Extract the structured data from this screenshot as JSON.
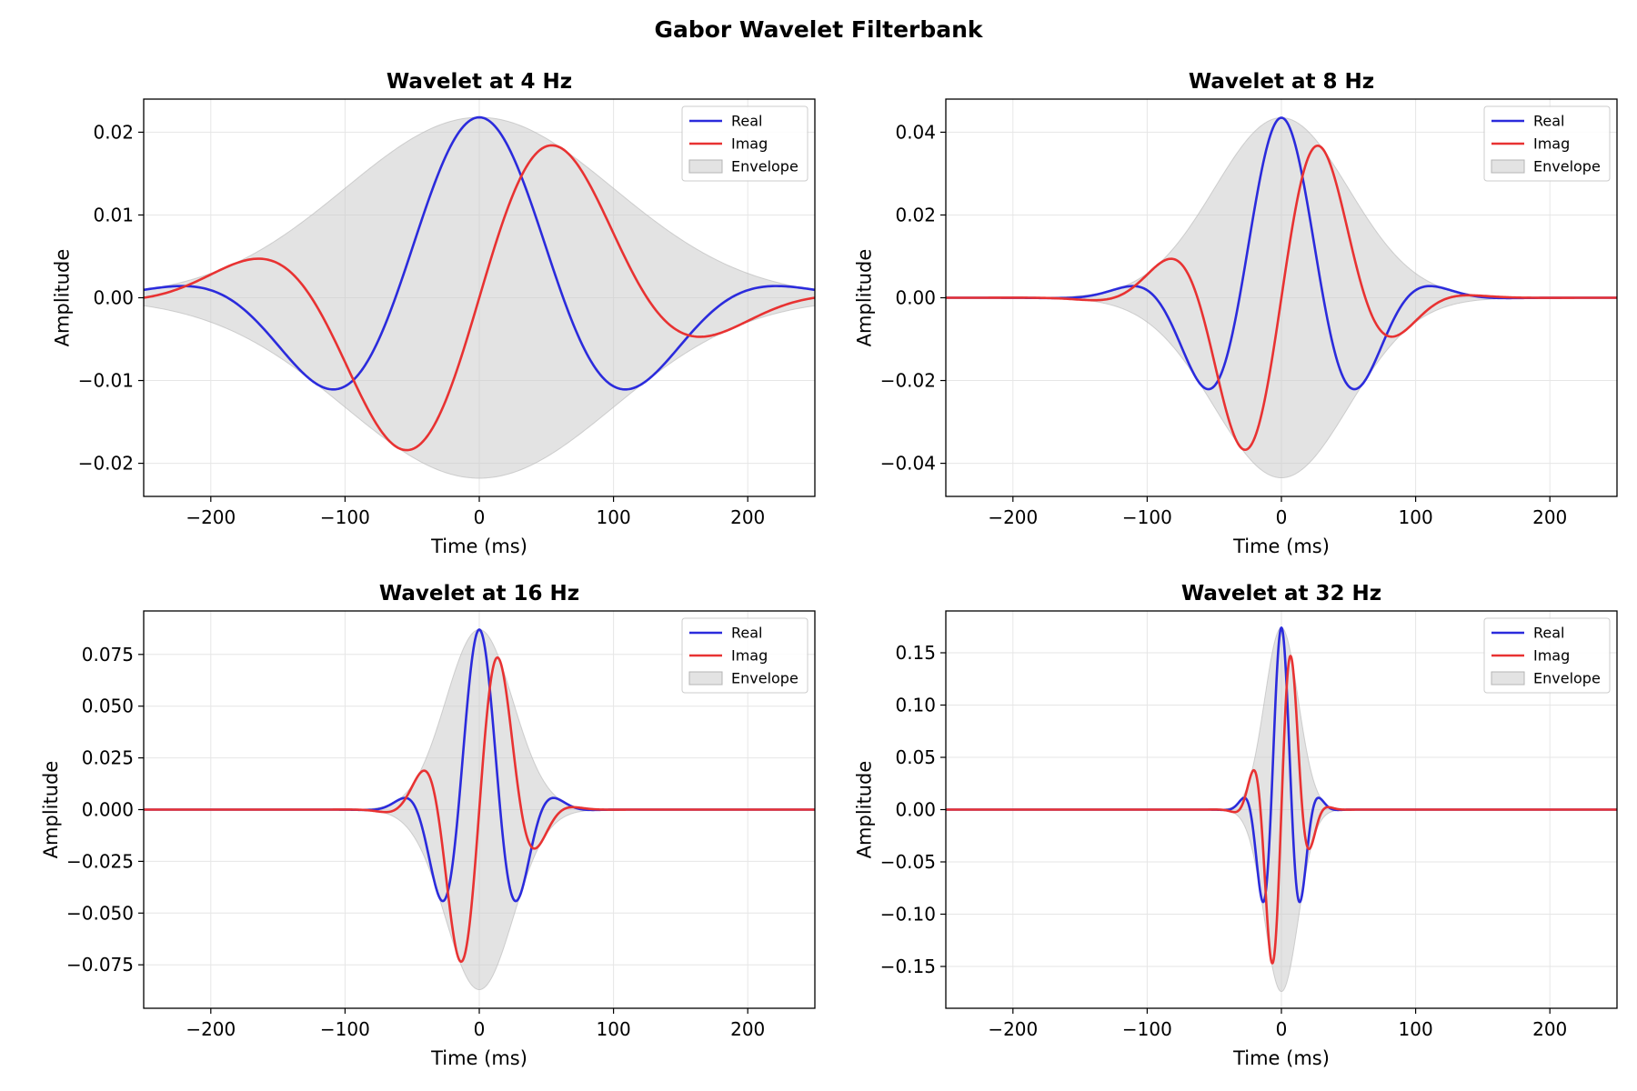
{
  "figure_title": "Gabor Wavelet Filterbank",
  "colors": {
    "real": "#2b2bdc",
    "imag": "#e83232",
    "envelope": "#c8c8c8"
  },
  "legend": {
    "entries": [
      "Real",
      "Imag",
      "Envelope"
    ],
    "placement": "upper-right"
  },
  "chart_data": [
    {
      "type": "line",
      "title": "Wavelet at 4 Hz",
      "freq_hz": 4,
      "xlabel": "Time (ms)",
      "ylabel": "Amplitude",
      "xlim": [
        -250,
        250
      ],
      "ylim": [
        -0.024,
        0.024
      ],
      "xticks": [
        -200,
        -100,
        0,
        100,
        200
      ],
      "xtick_labels": [
        "−200",
        "−100",
        "0",
        "100",
        "200"
      ],
      "yticks": [
        -0.02,
        -0.01,
        0.0,
        0.01,
        0.02
      ],
      "ytick_labels": [
        "−0.02",
        "−0.01",
        "0.00",
        "0.01",
        "0.02"
      ],
      "peak_amplitude": 0.0218,
      "sigma_ms": 100,
      "grid": true,
      "series": [
        {
          "name": "Real",
          "function": "A*exp(-t^2/(2*sigma^2))*cos(2*pi*f*t)"
        },
        {
          "name": "Imag",
          "function": "A*exp(-t^2/(2*sigma^2))*sin(2*pi*f*t)"
        },
        {
          "name": "Envelope",
          "function": "±A*exp(-t^2/(2*sigma^2))"
        }
      ]
    },
    {
      "type": "line",
      "title": "Wavelet at 8 Hz",
      "freq_hz": 8,
      "xlabel": "Time (ms)",
      "ylabel": "Amplitude",
      "xlim": [
        -250,
        250
      ],
      "ylim": [
        -0.048,
        0.048
      ],
      "xticks": [
        -200,
        -100,
        0,
        100,
        200
      ],
      "xtick_labels": [
        "−200",
        "−100",
        "0",
        "100",
        "200"
      ],
      "yticks": [
        -0.04,
        -0.02,
        0.0,
        0.02,
        0.04
      ],
      "ytick_labels": [
        "−0.04",
        "−0.02",
        "0.00",
        "0.02",
        "0.04"
      ],
      "peak_amplitude": 0.0435,
      "sigma_ms": 50,
      "grid": true,
      "series": [
        {
          "name": "Real",
          "function": "A*exp(-t^2/(2*sigma^2))*cos(2*pi*f*t)"
        },
        {
          "name": "Imag",
          "function": "A*exp(-t^2/(2*sigma^2))*sin(2*pi*f*t)"
        },
        {
          "name": "Envelope",
          "function": "±A*exp(-t^2/(2*sigma^2))"
        }
      ]
    },
    {
      "type": "line",
      "title": "Wavelet at 16 Hz",
      "freq_hz": 16,
      "xlabel": "Time (ms)",
      "ylabel": "Amplitude",
      "xlim": [
        -250,
        250
      ],
      "ylim": [
        -0.096,
        0.096
      ],
      "xticks": [
        -200,
        -100,
        0,
        100,
        200
      ],
      "xtick_labels": [
        "−200",
        "−100",
        "0",
        "100",
        "200"
      ],
      "yticks": [
        -0.075,
        -0.05,
        -0.025,
        0.0,
        0.025,
        0.05,
        0.075
      ],
      "ytick_labels": [
        "−0.075",
        "−0.050",
        "−0.025",
        "0.000",
        "0.025",
        "0.050",
        "0.075"
      ],
      "peak_amplitude": 0.087,
      "sigma_ms": 25,
      "grid": true,
      "series": [
        {
          "name": "Real",
          "function": "A*exp(-t^2/(2*sigma^2))*cos(2*pi*f*t)"
        },
        {
          "name": "Imag",
          "function": "A*exp(-t^2/(2*sigma^2))*sin(2*pi*f*t)"
        },
        {
          "name": "Envelope",
          "function": "±A*exp(-t^2/(2*sigma^2))"
        }
      ]
    },
    {
      "type": "line",
      "title": "Wavelet at 32 Hz",
      "freq_hz": 32,
      "xlabel": "Time (ms)",
      "ylabel": "Amplitude",
      "xlim": [
        -250,
        250
      ],
      "ylim": [
        -0.19,
        0.19
      ],
      "xticks": [
        -200,
        -100,
        0,
        100,
        200
      ],
      "xtick_labels": [
        "−200",
        "−100",
        "0",
        "100",
        "200"
      ],
      "yticks": [
        -0.15,
        -0.1,
        -0.05,
        0.0,
        0.05,
        0.1,
        0.15
      ],
      "ytick_labels": [
        "−0.15",
        "−0.10",
        "−0.05",
        "0.00",
        "0.05",
        "0.10",
        "0.15"
      ],
      "peak_amplitude": 0.174,
      "sigma_ms": 12.5,
      "grid": true,
      "series": [
        {
          "name": "Real",
          "function": "A*exp(-t^2/(2*sigma^2))*cos(2*pi*f*t)"
        },
        {
          "name": "Imag",
          "function": "A*exp(-t^2/(2*sigma^2))*sin(2*pi*f*t)"
        },
        {
          "name": "Envelope",
          "function": "±A*exp(-t^2/(2*sigma^2))"
        }
      ]
    }
  ]
}
